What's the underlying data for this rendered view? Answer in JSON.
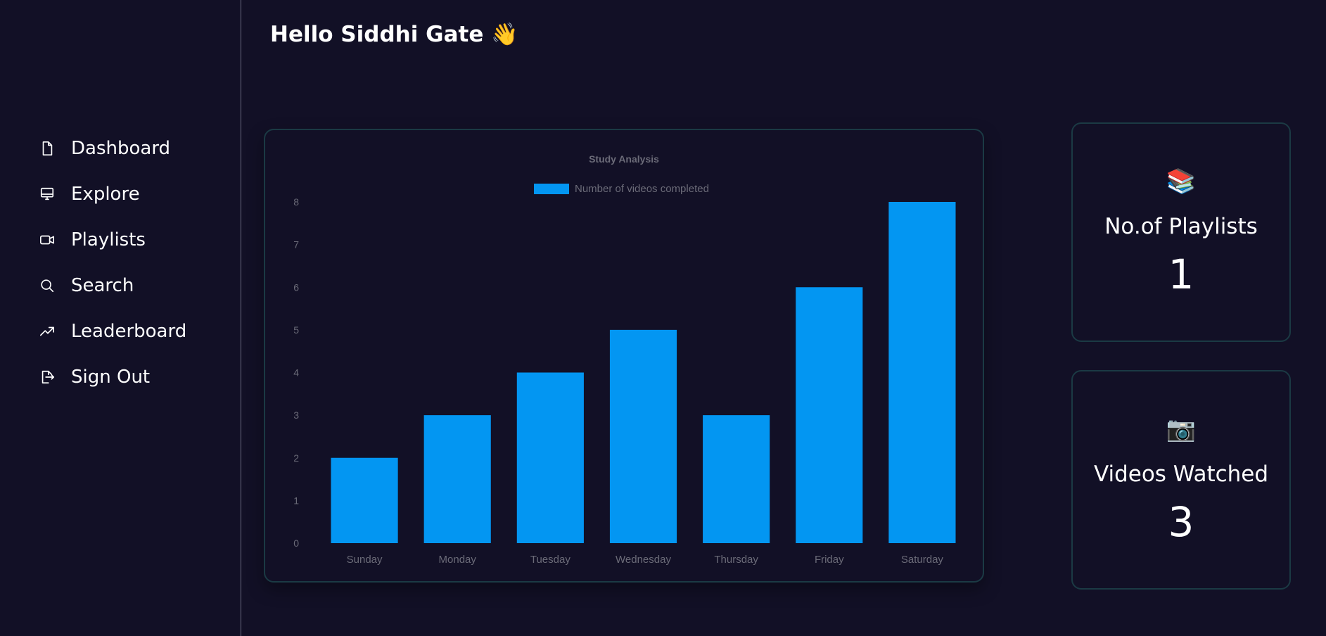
{
  "greeting": "Hello Siddhi Gate 👋",
  "sidebar": {
    "items": [
      {
        "label": "Dashboard",
        "icon": "file-icon"
      },
      {
        "label": "Explore",
        "icon": "monitor-icon"
      },
      {
        "label": "Playlists",
        "icon": "video-icon"
      },
      {
        "label": "Search",
        "icon": "search-icon"
      },
      {
        "label": "Leaderboard",
        "icon": "trending-up-icon"
      },
      {
        "label": "Sign Out",
        "icon": "sign-out-icon"
      }
    ]
  },
  "stats": {
    "playlists": {
      "emoji": "📚",
      "title": "No.of Playlists",
      "value": "1"
    },
    "videos": {
      "emoji": "📷",
      "title": "Videos Watched",
      "value": "3"
    }
  },
  "colors": {
    "background": "#121026",
    "bar": "#0396f2",
    "card_border": "#1b3a44",
    "chart_text": "#6b6b78"
  },
  "chart_data": {
    "type": "bar",
    "title": "Study Analysis",
    "categories": [
      "Sunday",
      "Monday",
      "Tuesday",
      "Wednesday",
      "Thursday",
      "Friday",
      "Saturday"
    ],
    "series": [
      {
        "name": "Number of videos completed",
        "values": [
          2,
          3,
          4,
          5,
          3,
          6,
          8
        ]
      }
    ],
    "ylim": [
      0,
      8
    ],
    "yticks": [
      "0",
      "1",
      "2",
      "3",
      "4",
      "5",
      "6",
      "7",
      "8"
    ],
    "legend": "top-center",
    "grid": false
  }
}
